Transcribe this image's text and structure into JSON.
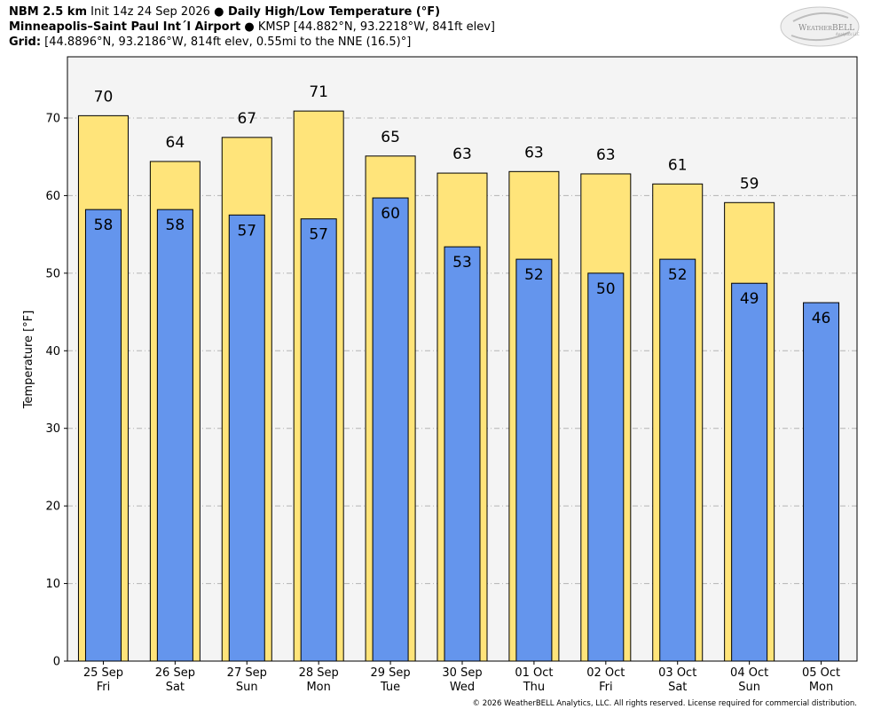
{
  "header": {
    "line1_model": "NBM 2.5 km",
    "line1_init": " Init 14z 24 Sep 2026 ",
    "line1_bullet": "●",
    "line1_product": " Daily High/Low Temperature (°F)",
    "line2_station": "Minneapolis–Saint Paul Int´l Airport",
    "line2_rest": " ● KMSP [44.882°N, 93.2218°W, 841ft elev]",
    "line3_label": "Grid:",
    "line3_rest": " [44.8896°N, 93.2186°W, 814ft elev, 0.55mi to the NNE (16.5)°]"
  },
  "logo": {
    "text_pre": "W",
    "text_mid": "EATHER",
    "text_post": "BELL",
    "sub": "Analytics LLC"
  },
  "copyright": "© 2026 WeatherBELL Analytics, LLC. All rights reserved. License required for commercial distribution.",
  "chart_data": {
    "type": "bar",
    "ylabel": "Temperature [°F]",
    "ylim": [
      0,
      70
    ],
    "yticks": [
      0,
      10,
      20,
      30,
      40,
      50,
      60,
      70
    ],
    "grid": true,
    "categories": [
      {
        "date": "25 Sep",
        "day": "Fri"
      },
      {
        "date": "26 Sep",
        "day": "Sat"
      },
      {
        "date": "27 Sep",
        "day": "Sun"
      },
      {
        "date": "28 Sep",
        "day": "Mon"
      },
      {
        "date": "29 Sep",
        "day": "Tue"
      },
      {
        "date": "30 Sep",
        "day": "Wed"
      },
      {
        "date": "01 Oct",
        "day": "Thu"
      },
      {
        "date": "02 Oct",
        "day": "Fri"
      },
      {
        "date": "03 Oct",
        "day": "Sat"
      },
      {
        "date": "04 Oct",
        "day": "Sun"
      },
      {
        "date": "05 Oct",
        "day": "Mon"
      }
    ],
    "series": [
      {
        "values": [
          70.3,
          64.4,
          67.5,
          70.9,
          65.1,
          62.9,
          63.1,
          62.8,
          61.5,
          59.1,
          null
        ],
        "labels": [
          "70",
          "64",
          "67",
          "71",
          "65",
          "63",
          "63",
          "63",
          "61",
          "59",
          ""
        ],
        "color": "#ffe47a"
      },
      {
        "values": [
          58.2,
          58.2,
          57.5,
          57.0,
          59.7,
          53.4,
          51.8,
          50.0,
          51.8,
          48.7,
          46.2
        ],
        "labels": [
          "58",
          "58",
          "57",
          "57",
          "60",
          "53",
          "52",
          "50",
          "52",
          "49",
          "46"
        ],
        "color": "#6495ed"
      }
    ]
  }
}
